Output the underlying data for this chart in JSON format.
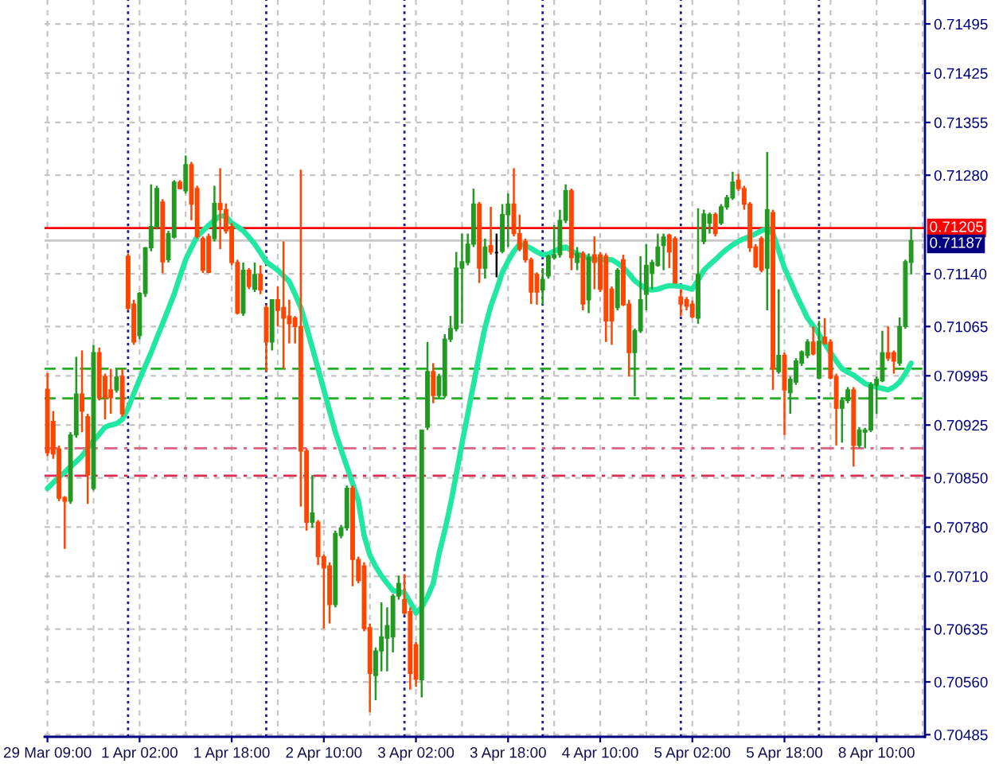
{
  "chart_data": {
    "type": "candlestick",
    "categories": [
      "29 Mar 09:00",
      null,
      null,
      null,
      null,
      null,
      null,
      null,
      null,
      null,
      null,
      null,
      null,
      null,
      null,
      null,
      "1 Apr 02:00",
      null,
      null,
      null,
      null,
      null,
      null,
      null,
      null,
      null,
      null,
      null,
      null,
      null,
      null,
      null,
      "1 Apr 18:00",
      null,
      null,
      null,
      null,
      null,
      null,
      null,
      null,
      null,
      null,
      null,
      null,
      null,
      null,
      null,
      "2 Apr 10:00",
      null,
      null,
      null,
      null,
      null,
      null,
      null,
      null,
      null,
      null,
      null,
      null,
      null,
      null,
      null,
      "3 Apr 02:00",
      null,
      null,
      null,
      null,
      null,
      null,
      null,
      null,
      null,
      null,
      null,
      null,
      null,
      null,
      null,
      "3 Apr 18:00",
      null,
      null,
      null,
      null,
      null,
      null,
      null,
      null,
      null,
      null,
      null,
      null,
      null,
      null,
      null,
      "4 Apr 10:00",
      null,
      null,
      null,
      null,
      null,
      null,
      null,
      null,
      null,
      null,
      null,
      null,
      null,
      null,
      null,
      "5 Apr 02:00",
      null,
      null,
      null,
      null,
      null,
      null,
      null,
      null,
      null,
      null,
      null,
      null,
      null,
      null,
      null,
      "5 Apr 18:00",
      null,
      null,
      null,
      null,
      null,
      null,
      null,
      null,
      null,
      null,
      null,
      null,
      null,
      null,
      null,
      "8 Apr 10:00",
      null,
      null,
      null,
      null,
      null,
      null
    ],
    "ohlc": [
      [
        0.70976,
        0.70999,
        0.70881,
        0.70886
      ],
      [
        0.7093,
        0.70945,
        0.70877,
        0.70884
      ],
      [
        0.70891,
        0.70896,
        0.70817,
        0.70821
      ],
      [
        0.70822,
        0.70824,
        0.70749,
        0.70817
      ],
      [
        0.70817,
        0.70915,
        0.70813,
        0.70911
      ],
      [
        0.70911,
        0.71022,
        0.70907,
        0.70969
      ],
      [
        0.70969,
        0.71031,
        0.70915,
        0.70945
      ],
      [
        0.70937,
        0.70941,
        0.70813,
        0.70854
      ],
      [
        0.70835,
        0.71039,
        0.70832,
        0.71028
      ],
      [
        0.71028,
        0.71035,
        0.7096,
        0.70964
      ],
      [
        0.70994,
        0.70998,
        0.70933,
        0.70964
      ],
      [
        0.70975,
        0.71005,
        0.70941,
        0.70964
      ],
      [
        0.70975,
        0.71005,
        0.70971,
        0.70993
      ],
      [
        0.70994,
        0.71005,
        0.70937,
        0.70941
      ],
      [
        0.71165,
        0.71169,
        0.71088,
        0.71091
      ],
      [
        0.71097,
        0.71103,
        0.71039,
        0.71043
      ],
      [
        0.71052,
        0.71114,
        0.71047,
        0.71112
      ],
      [
        0.71112,
        0.71178,
        0.71107,
        0.71177
      ],
      [
        0.71177,
        0.71267,
        0.71172,
        0.71207
      ],
      [
        0.71207,
        0.71265,
        0.71203,
        0.71261
      ],
      [
        0.71242,
        0.71246,
        0.71141,
        0.71157
      ],
      [
        0.7116,
        0.71201,
        0.71156,
        0.71197
      ],
      [
        0.71192,
        0.71273,
        0.7119,
        0.7127
      ],
      [
        0.7127,
        0.71273,
        0.7126,
        0.71261
      ],
      [
        0.71258,
        0.71308,
        0.71254,
        0.71295
      ],
      [
        0.71295,
        0.71299,
        0.71216,
        0.71239
      ],
      [
        0.71261,
        0.71265,
        0.7119,
        0.71193
      ],
      [
        0.7119,
        0.71193,
        0.71141,
        0.71145
      ],
      [
        0.71193,
        0.71197,
        0.71141,
        0.71142
      ],
      [
        0.7119,
        0.71265,
        0.71186,
        0.7124
      ],
      [
        0.7124,
        0.7129,
        0.71175,
        0.71231
      ],
      [
        0.71231,
        0.7124,
        0.71197,
        0.71201
      ],
      [
        0.71207,
        0.71212,
        0.71152,
        0.71156
      ],
      [
        0.71156,
        0.7116,
        0.71082,
        0.71084
      ],
      [
        0.71084,
        0.71156,
        0.7108,
        0.71145
      ],
      [
        0.71145,
        0.71148,
        0.71118,
        0.71122
      ],
      [
        0.71118,
        0.71156,
        0.71114,
        0.71139
      ],
      [
        0.71139,
        0.71152,
        0.71111,
        0.71117
      ],
      [
        0.71092,
        0.71096,
        0.71001,
        0.71043
      ],
      [
        0.71043,
        0.71103,
        0.71031,
        0.71103
      ],
      [
        0.71103,
        0.71122,
        0.71065,
        0.71088
      ],
      [
        0.71092,
        0.71186,
        0.71005,
        0.71077
      ],
      [
        0.7108,
        0.71103,
        0.71041,
        0.71069
      ],
      [
        0.71077,
        0.7108,
        0.71041,
        0.71065
      ],
      [
        0.71065,
        0.71288,
        0.70809,
        0.70888
      ],
      [
        0.70888,
        0.70892,
        0.70775,
        0.70787
      ],
      [
        0.70787,
        0.70854,
        0.70779,
        0.708
      ],
      [
        0.70787,
        0.7079,
        0.70726,
        0.70738
      ],
      [
        0.70738,
        0.70741,
        0.70636,
        0.70722
      ],
      [
        0.70725,
        0.7073,
        0.70643,
        0.7067
      ],
      [
        0.7067,
        0.70775,
        0.70666,
        0.70771
      ],
      [
        0.70768,
        0.70783,
        0.70764,
        0.70779
      ],
      [
        0.70779,
        0.70839,
        0.70775,
        0.70835
      ],
      [
        0.70835,
        0.70839,
        0.70696,
        0.70734
      ],
      [
        0.70734,
        0.70738,
        0.707,
        0.70704
      ],
      [
        0.70725,
        0.7073,
        0.70632,
        0.70636
      ],
      [
        0.70637,
        0.70643,
        0.70517,
        0.70572
      ],
      [
        0.70569,
        0.70609,
        0.70534,
        0.70604
      ],
      [
        0.70604,
        0.70673,
        0.70575,
        0.70624
      ],
      [
        0.70622,
        0.70666,
        0.70575,
        0.7064
      ],
      [
        0.70624,
        0.70685,
        0.70602,
        0.70682
      ],
      [
        0.70682,
        0.70711,
        0.70677,
        0.707
      ],
      [
        0.70677,
        0.70713,
        0.70655,
        0.70658
      ],
      [
        0.7066,
        0.70666,
        0.70549,
        0.70572
      ],
      [
        0.70613,
        0.70617,
        0.70553,
        0.70564
      ],
      [
        0.70563,
        0.70918,
        0.70538,
        0.70918
      ],
      [
        0.70922,
        0.71043,
        0.70918,
        0.71001
      ],
      [
        0.71001,
        0.71013,
        0.70956,
        0.70967
      ],
      [
        0.70967,
        0.70998,
        0.70964,
        0.70994
      ],
      [
        0.70967,
        0.71054,
        0.70964,
        0.71047
      ],
      [
        0.71047,
        0.7108,
        0.71043,
        0.71062
      ],
      [
        0.71062,
        0.71171,
        0.71058,
        0.71148
      ],
      [
        0.71148,
        0.71197,
        0.71069,
        0.71157
      ],
      [
        0.71156,
        0.71197,
        0.71152,
        0.71182
      ],
      [
        0.71182,
        0.71261,
        0.71178,
        0.71239
      ],
      [
        0.71239,
        0.71242,
        0.71127,
        0.71148
      ],
      [
        0.71148,
        0.7119,
        0.71133,
        0.71178
      ],
      [
        0.7118,
        0.71235,
        0.71167,
        0.71171
      ],
      [
        0.7117,
        0.71197,
        0.71135,
        0.7117
      ],
      [
        0.71172,
        0.71239,
        0.71169,
        0.71224
      ],
      [
        0.71224,
        0.71254,
        0.71178,
        0.71239
      ],
      [
        0.71239,
        0.7129,
        0.71193,
        0.71197
      ],
      [
        0.71197,
        0.71224,
        0.71172,
        0.71175
      ],
      [
        0.71186,
        0.7119,
        0.71156,
        0.7116
      ],
      [
        0.7116,
        0.71163,
        0.71097,
        0.71114
      ],
      [
        0.71139,
        0.71142,
        0.71096,
        0.71114
      ],
      [
        0.71117,
        0.71148,
        0.71096,
        0.71132
      ],
      [
        0.71137,
        0.71167,
        0.71133,
        0.71165
      ],
      [
        0.71163,
        0.71209,
        0.7116,
        0.71167
      ],
      [
        0.71167,
        0.71231,
        0.71163,
        0.71216
      ],
      [
        0.71216,
        0.71267,
        0.71212,
        0.71258
      ],
      [
        0.71258,
        0.71261,
        0.71145,
        0.71163
      ],
      [
        0.71156,
        0.71178,
        0.71145,
        0.71169
      ],
      [
        0.71169,
        0.71172,
        0.71088,
        0.71097
      ],
      [
        0.71103,
        0.71169,
        0.71084,
        0.71163
      ],
      [
        0.71167,
        0.71193,
        0.71118,
        0.71156
      ],
      [
        0.71167,
        0.71171,
        0.71114,
        0.71118
      ],
      [
        0.71165,
        0.71169,
        0.71043,
        0.71073
      ],
      [
        0.71118,
        0.71122,
        0.71039,
        0.71073
      ],
      [
        0.71092,
        0.71148,
        0.71088,
        0.71145
      ],
      [
        0.7116,
        0.71167,
        0.71094,
        0.71096
      ],
      [
        0.71097,
        0.71103,
        0.70994,
        0.71028
      ],
      [
        0.71028,
        0.71062,
        0.70966,
        0.71059
      ],
      [
        0.71059,
        0.71165,
        0.71056,
        0.71103
      ],
      [
        0.71111,
        0.71182,
        0.71088,
        0.71152
      ],
      [
        0.71141,
        0.7116,
        0.71118,
        0.71156
      ],
      [
        0.71152,
        0.71197,
        0.7115,
        0.71178
      ],
      [
        0.7118,
        0.71197,
        0.71145,
        0.71192
      ],
      [
        0.71195,
        0.71197,
        0.71148,
        0.71171
      ],
      [
        0.7119,
        0.71193,
        0.71126,
        0.71127
      ],
      [
        0.71107,
        0.71118,
        0.7108,
        0.71097
      ],
      [
        0.71103,
        0.71107,
        0.71088,
        0.71094
      ],
      [
        0.71097,
        0.71102,
        0.71077,
        0.71079
      ],
      [
        0.71077,
        0.71233,
        0.71069,
        0.71139
      ],
      [
        0.71186,
        0.71231,
        0.71182,
        0.71225
      ],
      [
        0.71212,
        0.71227,
        0.71197,
        0.71224
      ],
      [
        0.71224,
        0.71227,
        0.71193,
        0.71197
      ],
      [
        0.71212,
        0.71239,
        0.71209,
        0.71235
      ],
      [
        0.71235,
        0.71252,
        0.71231,
        0.71248
      ],
      [
        0.71248,
        0.71285,
        0.71245,
        0.7127
      ],
      [
        0.71273,
        0.71282,
        0.71258,
        0.71261
      ],
      [
        0.71261,
        0.71265,
        0.71231,
        0.71239
      ],
      [
        0.71239,
        0.71242,
        0.71171,
        0.71177
      ],
      [
        0.71178,
        0.71182,
        0.71148,
        0.7115
      ],
      [
        0.7119,
        0.71193,
        0.71142,
        0.71145
      ],
      [
        0.71148,
        0.71313,
        0.71088,
        0.71231
      ],
      [
        0.71227,
        0.71231,
        0.70975,
        0.71005
      ],
      [
        0.71001,
        0.71118,
        0.70998,
        0.71024
      ],
      [
        0.71024,
        0.71028,
        0.70911,
        0.70975
      ],
      [
        0.70971,
        0.70994,
        0.70941,
        0.7099
      ],
      [
        0.70986,
        0.7102,
        0.70982,
        0.71016
      ],
      [
        0.71013,
        0.71031,
        0.71009,
        0.71029
      ],
      [
        0.71024,
        0.71047,
        0.7102,
        0.71043
      ],
      [
        0.71043,
        0.71065,
        0.71024,
        0.71026
      ],
      [
        0.70992,
        0.71073,
        0.7099,
        0.71044
      ],
      [
        0.7105,
        0.71077,
        0.71039,
        0.71041
      ],
      [
        0.71043,
        0.71047,
        0.7099,
        0.70992
      ],
      [
        0.70994,
        0.70998,
        0.70896,
        0.70949
      ],
      [
        0.70949,
        0.70964,
        0.709,
        0.7096
      ],
      [
        0.7096,
        0.70979,
        0.70956,
        0.70975
      ],
      [
        0.70975,
        0.70979,
        0.70866,
        0.70896
      ],
      [
        0.70896,
        0.70922,
        0.70892,
        0.70918
      ],
      [
        0.70915,
        0.70921,
        0.70892,
        0.70918
      ],
      [
        0.70918,
        0.70986,
        0.70915,
        0.70982
      ],
      [
        0.70982,
        0.70994,
        0.70941,
        0.7099
      ],
      [
        0.70988,
        0.71059,
        0.70986,
        0.71028
      ],
      [
        0.71028,
        0.71065,
        0.71016,
        0.7102
      ],
      [
        0.71028,
        0.71031,
        0.70998,
        0.71016
      ],
      [
        0.71013,
        0.71078,
        0.71009,
        0.71065
      ],
      [
        0.71065,
        0.7116,
        0.71062,
        0.71157
      ],
      [
        0.71156,
        0.71205,
        0.71139,
        0.71187
      ]
    ],
    "colors": [
      "#ff4500",
      "#ff4500",
      "#ff4500",
      "#ff4500",
      "#229a22",
      "#229a22",
      "#ff4500",
      "#ff4500",
      "#229a22",
      "#ff4500",
      "#ff4500",
      "#ff4500",
      "#229a22",
      "#ff4500",
      "#ff4500",
      "#ff4500",
      "#229a22",
      "#229a22",
      "#229a22",
      "#229a22",
      "#ff4500",
      "#229a22",
      "#229a22",
      "#ff4500",
      "#229a22",
      "#ff4500",
      "#ff4500",
      "#ff4500",
      "#ff4500",
      "#229a22",
      "#ff4500",
      "#ff4500",
      "#ff4500",
      "#ff4500",
      "#229a22",
      "#ff4500",
      "#229a22",
      "#ff4500",
      "#ff4500",
      "#229a22",
      "#ff4500",
      "#ff4500",
      "#ff4500",
      "#ff4500",
      "#ff4500",
      "#ff4500",
      "#229a22",
      "#ff4500",
      "#ff4500",
      "#ff4500",
      "#229a22",
      "#229a22",
      "#229a22",
      "#ff4500",
      "#ff4500",
      "#ff4500",
      "#ff4500",
      "#229a22",
      "#229a22",
      "#229a22",
      "#229a22",
      "#229a22",
      "#ff4500",
      "#ff4500",
      "#ff4500",
      "#229a22",
      "#229a22",
      "#ff4500",
      "#229a22",
      "#229a22",
      "#229a22",
      "#229a22",
      "#229a22",
      "#229a22",
      "#229a22",
      "#ff4500",
      "#229a22",
      "#ff4500",
      "#000000",
      "#229a22",
      "#229a22",
      "#ff4500",
      "#ff4500",
      "#ff4500",
      "#ff4500",
      "#ff4500",
      "#229a22",
      "#229a22",
      "#229a22",
      "#229a22",
      "#229a22",
      "#ff4500",
      "#229a22",
      "#ff4500",
      "#229a22",
      "#ff4500",
      "#ff4500",
      "#ff4500",
      "#ff4500",
      "#229a22",
      "#ff4500",
      "#ff4500",
      "#229a22",
      "#229a22",
      "#229a22",
      "#229a22",
      "#229a22",
      "#229a22",
      "#ff4500",
      "#ff4500",
      "#ff4500",
      "#ff4500",
      "#ff4500",
      "#229a22",
      "#229a22",
      "#229a22",
      "#ff4500",
      "#229a22",
      "#229a22",
      "#229a22",
      "#ff4500",
      "#ff4500",
      "#ff4500",
      "#ff4500",
      "#ff4500",
      "#229a22",
      "#ff4500",
      "#229a22",
      "#ff4500",
      "#229a22",
      "#229a22",
      "#229a22",
      "#229a22",
      "#ff4500",
      "#229a22",
      "#ff4500",
      "#ff4500",
      "#ff4500",
      "#229a22",
      "#229a22",
      "#ff4500",
      "#229a22",
      "#229a22",
      "#229a22",
      "#229a22",
      "#229a22",
      "#ff4500",
      "#ff4500",
      "#229a22",
      "#229a22",
      "#229a22"
    ],
    "series": [
      {
        "type": "line",
        "color": "#20e8a0",
        "values": [
          0.70835,
          0.70843,
          0.70851,
          0.70858,
          0.70866,
          0.70873,
          0.70881,
          0.70892,
          0.70903,
          0.70912,
          0.70922,
          0.70925,
          0.70927,
          0.70933,
          0.70949,
          0.7097,
          0.7099,
          0.71009,
          0.71028,
          0.71049,
          0.71069,
          0.7109,
          0.71111,
          0.71136,
          0.7116,
          0.71177,
          0.71193,
          0.71201,
          0.71209,
          0.71216,
          0.71222,
          0.71222,
          0.71212,
          0.71207,
          0.71201,
          0.71192,
          0.71182,
          0.7117,
          0.71157,
          0.71151,
          0.71145,
          0.71137,
          0.71129,
          0.71111,
          0.71092,
          0.71064,
          0.71035,
          0.71005,
          0.70975,
          0.70945,
          0.70915,
          0.7089,
          0.70866,
          0.70842,
          0.70817,
          0.70768,
          0.7074,
          0.70724,
          0.70711,
          0.707,
          0.7069,
          0.70688,
          0.70687,
          0.70673,
          0.70658,
          0.70666,
          0.70681,
          0.707,
          0.70742,
          0.70775,
          0.70812,
          0.70855,
          0.70899,
          0.70941,
          0.70983,
          0.71025,
          0.71064,
          0.71094,
          0.71117,
          0.71142,
          0.71158,
          0.71172,
          0.71182,
          0.7118,
          0.71176,
          0.71171,
          0.71167,
          0.71168,
          0.71172,
          0.71176,
          0.71178,
          0.71173,
          0.71168,
          0.71165,
          0.71162,
          0.71161,
          0.7116,
          0.7116,
          0.7116,
          0.71155,
          0.71149,
          0.7114,
          0.7113,
          0.71124,
          0.71118,
          0.71117,
          0.71118,
          0.71121,
          0.71123,
          0.71123,
          0.71122,
          0.7112,
          0.71118,
          0.71131,
          0.71145,
          0.71153,
          0.7116,
          0.71168,
          0.71175,
          0.71181,
          0.71186,
          0.7119,
          0.71193,
          0.71197,
          0.71201,
          0.71204,
          0.71197,
          0.71173,
          0.71148,
          0.7113,
          0.71111,
          0.71094,
          0.71077,
          0.71066,
          0.71054,
          0.71041,
          0.71028,
          0.71016,
          0.71005,
          0.71,
          0.70996,
          0.7099,
          0.70984,
          0.70981,
          0.70979,
          0.70977,
          0.70975,
          0.70979,
          0.70986,
          0.70998,
          0.71013
        ]
      }
    ],
    "ylim": [
      0.70482,
      0.71529
    ],
    "yticks": [
      0.71495,
      0.71425,
      0.71355,
      {
        "value": 0.7128,
        "label": "0.71280"
      },
      {
        "value": 0.7114,
        "label": "0.71140"
      },
      0.71065,
      0.70995,
      0.70925,
      {
        "value": 0.7085,
        "label": "0.70850"
      },
      {
        "value": 0.7078,
        "label": "0.70780"
      },
      {
        "value": 0.7071,
        "label": "0.70710"
      },
      0.70635,
      {
        "value": 0.7056,
        "label": "0.70560"
      },
      0.70485
    ],
    "grid": true,
    "ref_lines": [
      {
        "axis": "y",
        "value": 0.71205,
        "label": "0.71205",
        "color": "#ff0000",
        "line_style": "solid"
      },
      {
        "axis": "y",
        "value": 0.71187,
        "label": "0.71187",
        "color": "#c8c8c8",
        "line_style": "solid"
      },
      {
        "axis": "y",
        "value": 0.71005,
        "color": "#22b022",
        "line_style": "dashed"
      },
      {
        "axis": "y",
        "value": 0.70963,
        "color": "#22b022",
        "line_style": "dashed"
      },
      {
        "axis": "y",
        "value": 0.70892,
        "color": "#e06080",
        "line_style": "dashdot"
      },
      {
        "axis": "y",
        "value": 0.70853,
        "color": "#d82c50",
        "line_style": "dashdot"
      }
    ]
  }
}
